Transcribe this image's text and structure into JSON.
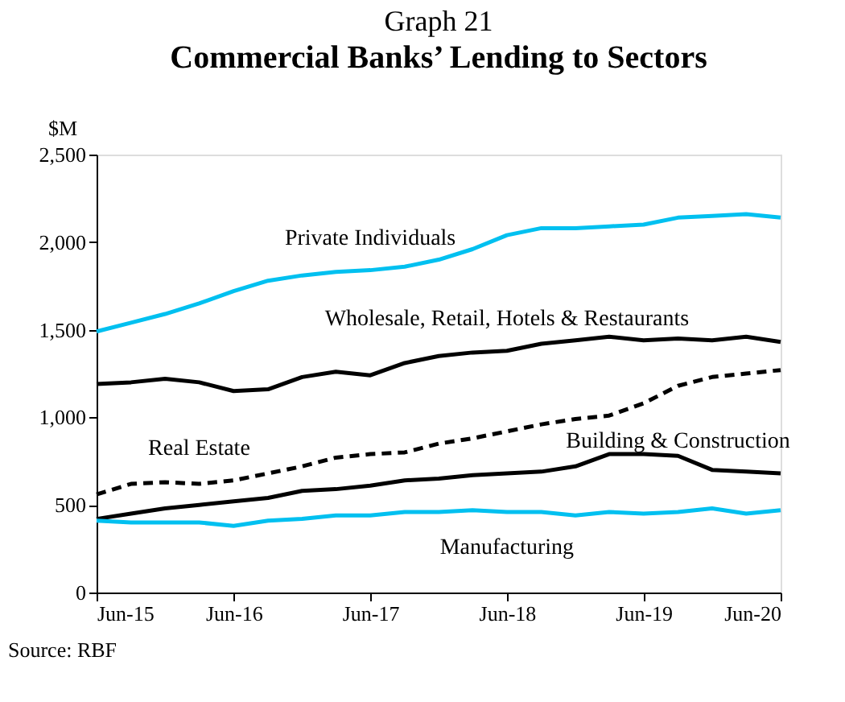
{
  "chart_data": {
    "type": "line",
    "title": "Graph 21",
    "subtitle": "Commercial Banks’ Lending to Sectors",
    "ylabel": "$M",
    "x": [
      "2015-06",
      "2015-09",
      "2015-12",
      "2016-03",
      "2016-06",
      "2016-09",
      "2016-12",
      "2017-03",
      "2017-06",
      "2017-09",
      "2017-12",
      "2018-03",
      "2018-06",
      "2018-09",
      "2018-12",
      "2019-03",
      "2019-06",
      "2019-09",
      "2019-12",
      "2020-03",
      "2020-06"
    ],
    "series": [
      {
        "name": "Private Individuals",
        "color": "#00c0f0",
        "line_style": "solid",
        "values": [
          1490,
          1540,
          1590,
          1650,
          1720,
          1780,
          1810,
          1830,
          1840,
          1860,
          1900,
          1960,
          2040,
          2080,
          2080,
          2090,
          2100,
          2140,
          2150,
          2160,
          2140
        ]
      },
      {
        "name": "Wholesale, Retail, Hotels & Restaurants",
        "color": "#000000",
        "line_style": "solid",
        "values": [
          1190,
          1200,
          1220,
          1200,
          1150,
          1160,
          1230,
          1260,
          1240,
          1310,
          1350,
          1370,
          1380,
          1420,
          1440,
          1460,
          1440,
          1450,
          1440,
          1460,
          1430
        ]
      },
      {
        "name": "Real Estate",
        "color": "#000000",
        "line_style": "dashed",
        "values": [
          560,
          620,
          630,
          620,
          640,
          680,
          720,
          770,
          790,
          800,
          850,
          880,
          920,
          960,
          990,
          1010,
          1080,
          1180,
          1230,
          1250,
          1270
        ]
      },
      {
        "name": "Building & Construction",
        "color": "#000000",
        "line_style": "solid",
        "values": [
          420,
          450,
          480,
          500,
          520,
          540,
          580,
          590,
          610,
          640,
          650,
          670,
          680,
          690,
          720,
          790,
          790,
          780,
          700,
          690,
          680
        ]
      },
      {
        "name": "Manufacturing",
        "color": "#00c0f0",
        "line_style": "solid",
        "values": [
          410,
          400,
          400,
          400,
          380,
          410,
          420,
          440,
          440,
          460,
          460,
          470,
          460,
          460,
          440,
          460,
          450,
          460,
          480,
          450,
          470
        ]
      }
    ],
    "xlim": [
      "2015-06",
      "2020-06"
    ],
    "xticks": [
      {
        "value": "2015-06",
        "label": "Jun-15"
      },
      {
        "value": "2016-06",
        "label": "Jun-16"
      },
      {
        "value": "2017-06",
        "label": "Jun-17"
      },
      {
        "value": "2018-06",
        "label": "Jun-18"
      },
      {
        "value": "2019-06",
        "label": "Jun-19"
      },
      {
        "value": "2020-06",
        "label": "Jun-20"
      }
    ],
    "ylim": [
      0,
      2500
    ],
    "yticks": [
      0,
      500,
      {
        "value": 1000,
        "label": "1,000"
      },
      {
        "value": 1500,
        "label": "1,500"
      },
      {
        "value": 2000,
        "label": "2,000"
      },
      {
        "value": 2500,
        "label": "2,500"
      }
    ],
    "grid": false,
    "legend": false,
    "marker": "none",
    "annotations": [
      "Source: RBF"
    ]
  }
}
